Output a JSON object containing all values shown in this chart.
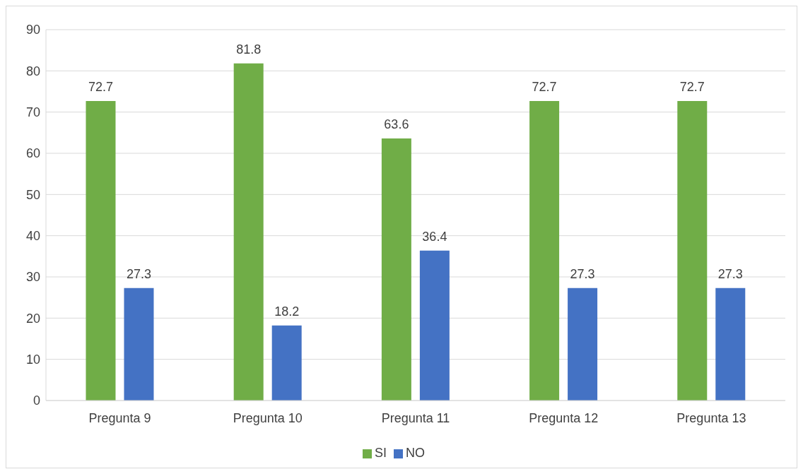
{
  "chart_data": {
    "type": "bar",
    "categories": [
      "Pregunta 9",
      "Pregunta 10",
      "Pregunta 11",
      "Pregunta 12",
      "Pregunta 13"
    ],
    "series": [
      {
        "name": "SI",
        "color": "#70ad47",
        "values": [
          72.7,
          81.8,
          63.6,
          72.7,
          72.7
        ]
      },
      {
        "name": "NO",
        "color": "#4472c4",
        "values": [
          27.3,
          18.2,
          36.4,
          27.3,
          27.3
        ]
      }
    ],
    "ylim": [
      0,
      90
    ],
    "yticks": [
      0,
      10,
      20,
      30,
      40,
      50,
      60,
      70,
      80,
      90
    ],
    "grid": "y",
    "legend": "bottom",
    "data_labels": true
  }
}
